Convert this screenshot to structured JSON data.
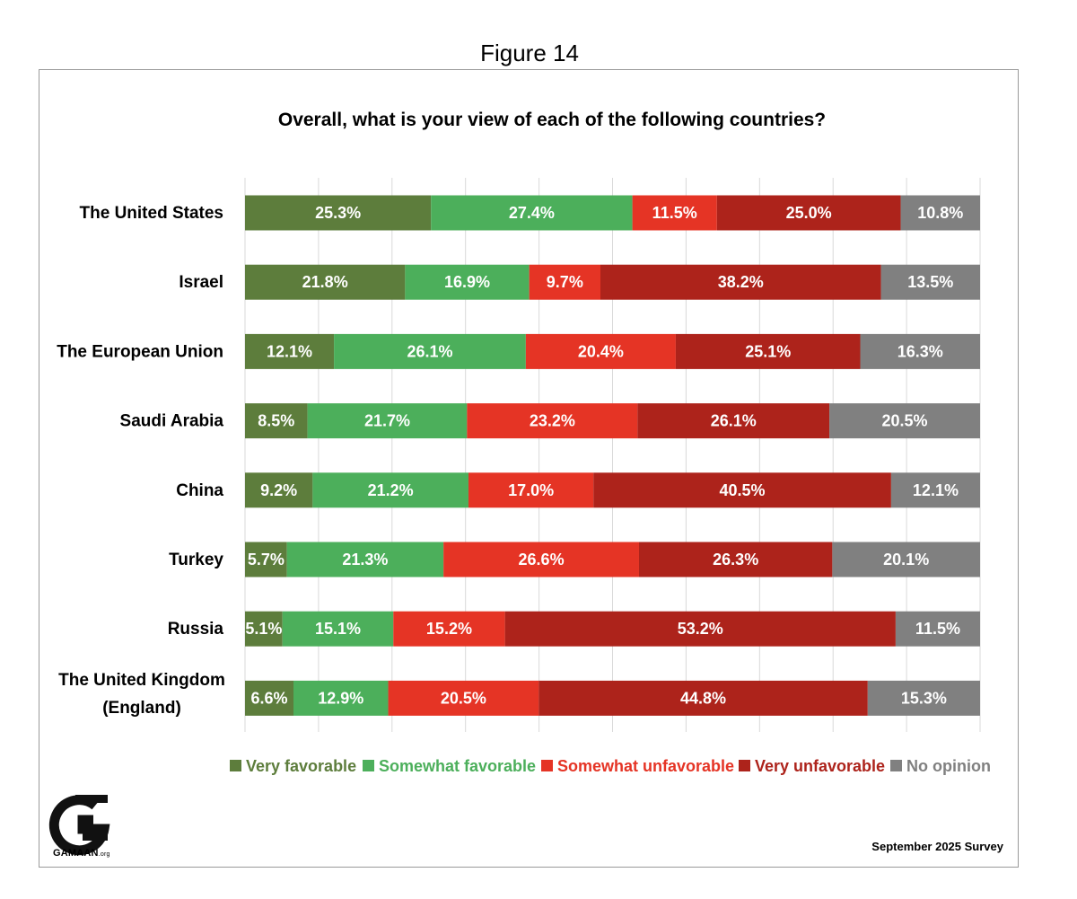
{
  "figure_label": "Figure 14",
  "footer": {
    "logo_text": "GAMAAN",
    "logo_suffix": ".org",
    "survey_note": "September 2025 Survey"
  },
  "colors": {
    "very_favorable": "#5d7d3c",
    "somewhat_favorable": "#4caf5b",
    "somewhat_unfavorable": "#e53425",
    "very_unfavorable": "#ad231b",
    "no_opinion": "#808080",
    "grid": "#d9d9d9"
  },
  "chart_data": {
    "type": "bar",
    "orientation": "horizontal",
    "stacked": true,
    "title": "Overall, what is your view of each of the following countries?",
    "xlabel": "",
    "ylabel": "",
    "xlim": [
      0,
      100
    ],
    "grid": true,
    "legend_position": "bottom",
    "categories": [
      [
        "The United States"
      ],
      [
        "Israel"
      ],
      [
        "The European Union"
      ],
      [
        "Saudi Arabia"
      ],
      [
        "China"
      ],
      [
        "Turkey"
      ],
      [
        "Russia"
      ],
      [
        "The United Kingdom",
        "(England)"
      ]
    ],
    "series": [
      {
        "name": "Very favorable",
        "values": [
          25.3,
          21.8,
          12.1,
          8.5,
          9.2,
          5.7,
          5.1,
          6.6
        ]
      },
      {
        "name": "Somewhat favorable",
        "values": [
          27.4,
          16.9,
          26.1,
          21.7,
          21.2,
          21.3,
          15.1,
          12.9
        ]
      },
      {
        "name": "Somewhat unfavorable",
        "values": [
          11.5,
          9.7,
          20.4,
          23.2,
          17.0,
          26.6,
          15.2,
          20.5
        ]
      },
      {
        "name": "Very unfavorable",
        "values": [
          25.0,
          38.2,
          25.1,
          26.1,
          40.5,
          26.3,
          53.2,
          44.8
        ]
      },
      {
        "name": "No opinion",
        "values": [
          10.8,
          13.5,
          16.3,
          20.5,
          12.1,
          20.1,
          11.5,
          15.3
        ]
      }
    ]
  }
}
